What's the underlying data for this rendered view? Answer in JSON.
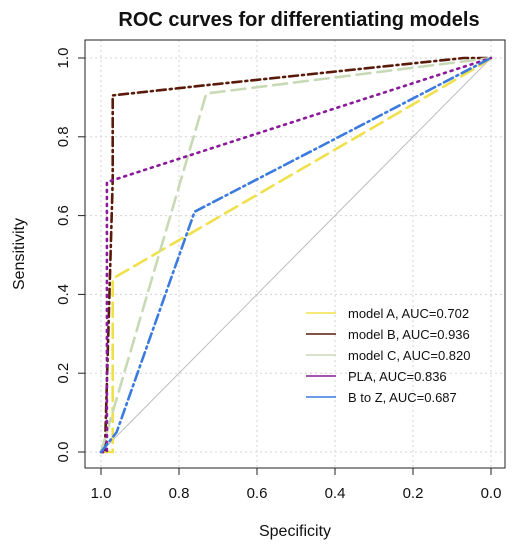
{
  "chart_data": {
    "type": "line",
    "title": "ROC curves for differentiating models",
    "xlabel": "Specificity",
    "ylabel": "Sensitivity",
    "xlim": [
      1.0,
      0.0
    ],
    "ylim": [
      0.0,
      1.0
    ],
    "x_reversed": true,
    "grid": true,
    "legend_position": "bottom-right",
    "x_ticks": [
      1.0,
      0.8,
      0.6,
      0.4,
      0.2,
      0.0
    ],
    "x_tick_labels": [
      "1.0",
      "0.8",
      "0.6",
      "0.4",
      "0.2",
      "0.0"
    ],
    "y_ticks": [
      0.0,
      0.2,
      0.4,
      0.6,
      0.8,
      1.0
    ],
    "y_tick_labels": [
      "0.0",
      "0.2",
      "0.4",
      "0.6",
      "0.8",
      "1.0"
    ],
    "reference_line": {
      "x": [
        1.0,
        0.0
      ],
      "y": [
        0.0,
        1.0
      ],
      "color": "#bdbdbd"
    },
    "series": [
      {
        "name": "model A, AUC=0.702",
        "color": "#f0e04a",
        "dash": "long-dash",
        "x": [
          1.0,
          0.97,
          0.97,
          0.03,
          0.0
        ],
        "y": [
          0.0,
          0.0,
          0.44,
          0.98,
          1.0
        ]
      },
      {
        "name": "model B, AUC=0.936",
        "color": "#5a1a0a",
        "dash": "dot-dash",
        "x": [
          1.0,
          0.99,
          0.97,
          0.97,
          0.74,
          0.07,
          0.0
        ],
        "y": [
          0.0,
          0.0,
          0.69,
          0.905,
          0.93,
          1.0,
          1.0
        ]
      },
      {
        "name": "model C, AUC=0.820",
        "color": "#c8dab5",
        "dash": "long-dash",
        "x": [
          1.0,
          0.73,
          0.0
        ],
        "y": [
          0.0,
          0.91,
          1.0
        ]
      },
      {
        "name": "PLA, AUC=0.836",
        "color": "#8a1a9a",
        "dash": "dotted",
        "x": [
          1.0,
          0.985,
          0.985,
          0.0
        ],
        "y": [
          0.0,
          0.0,
          0.685,
          1.0
        ]
      },
      {
        "name": "B to Z, AUC=0.687",
        "color": "#3b7be0",
        "dash": "dash-dot",
        "x": [
          1.0,
          0.96,
          0.76,
          0.0
        ],
        "y": [
          0.0,
          0.05,
          0.61,
          1.0
        ]
      }
    ]
  }
}
